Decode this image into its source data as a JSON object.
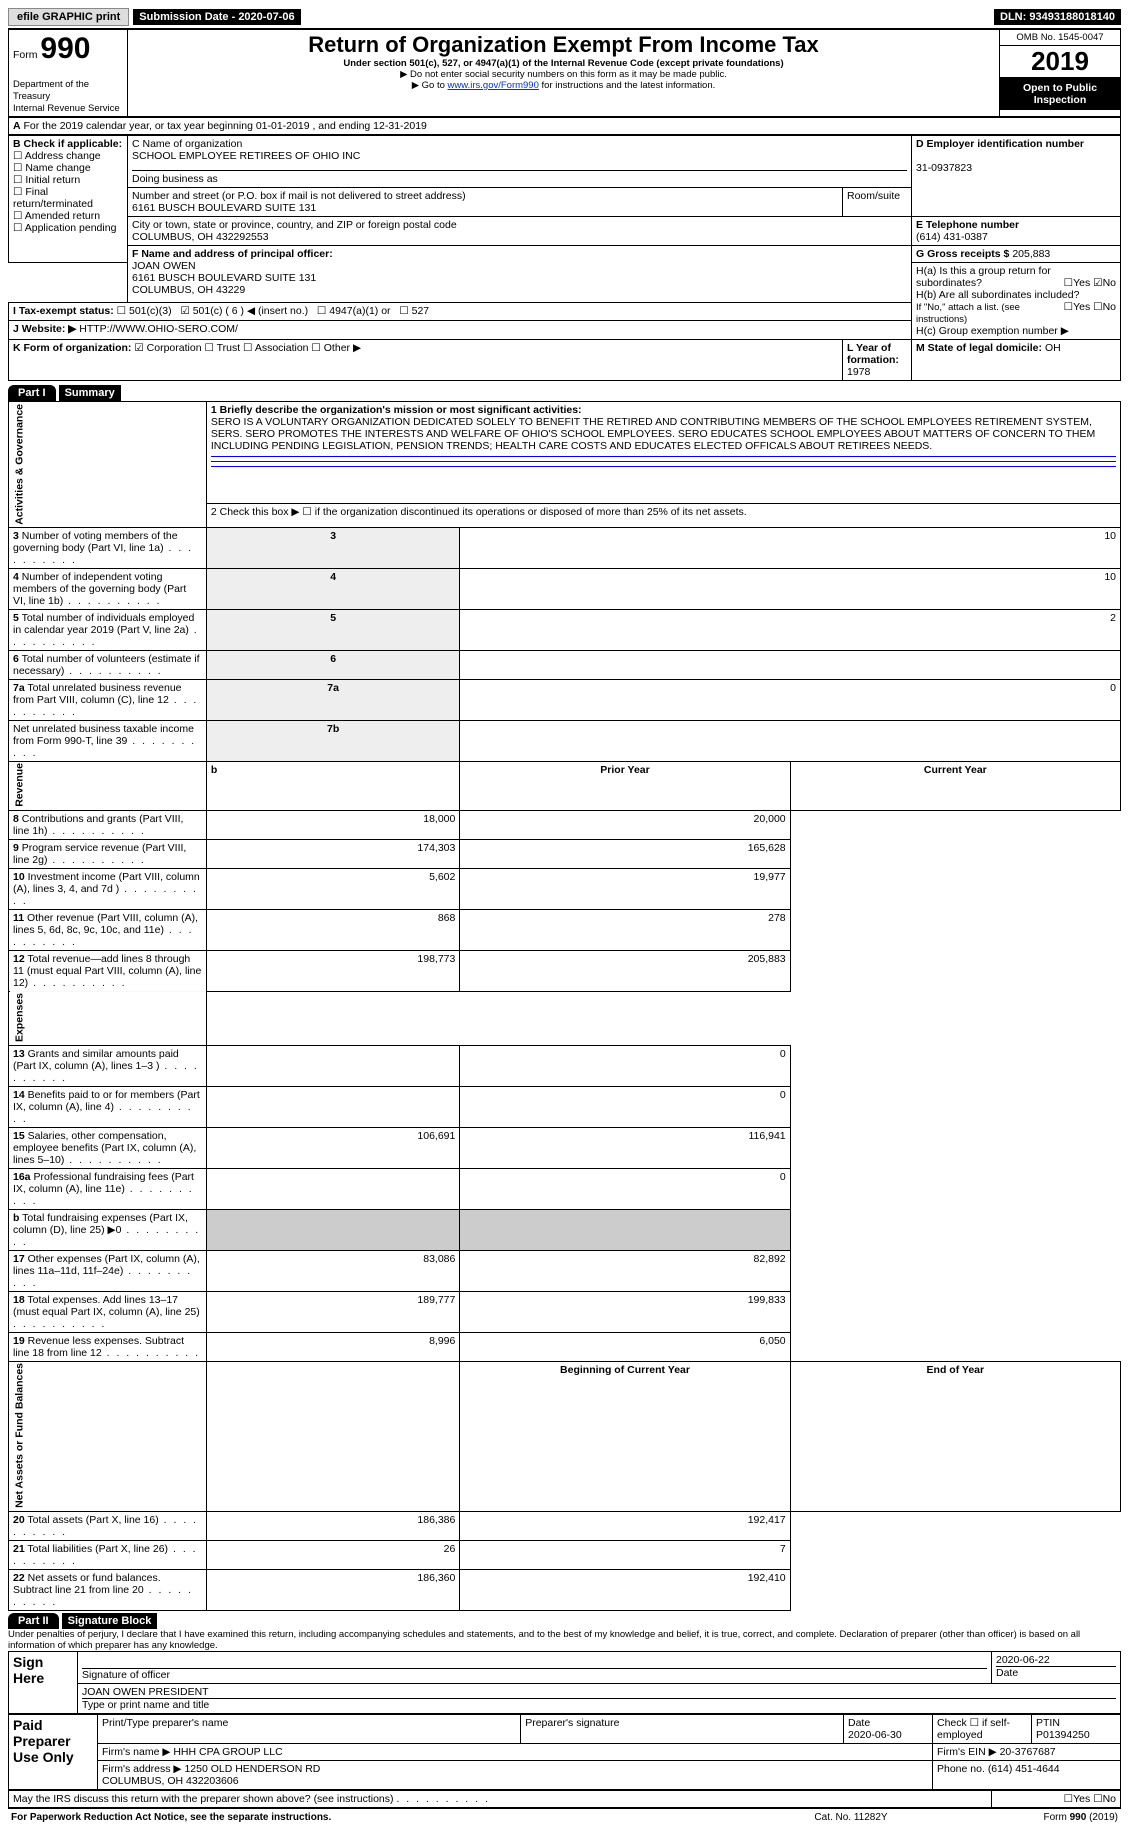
{
  "topbar": {
    "efile": "efile GRAPHIC print",
    "submission_label": "Submission Date - 2020-07-06",
    "dln": "DLN: 93493188018140"
  },
  "header": {
    "form_label": "Form",
    "form_number": "990",
    "title": "Return of Organization Exempt From Income Tax",
    "subtitle": "Under section 501(c), 527, or 4947(a)(1) of the Internal Revenue Code (except private foundations)",
    "note1": "▶ Do not enter social security numbers on this form as it may be made public.",
    "note2_pre": "▶ Go to ",
    "note2_link": "www.irs.gov/Form990",
    "note2_post": " for instructions and the latest information.",
    "dept": "Department of the Treasury\nInternal Revenue Service",
    "omb": "OMB No. 1545-0047",
    "year": "2019",
    "open_public": "Open to Public Inspection"
  },
  "periodA": "For the 2019 calendar year, or tax year beginning 01-01-2019     , and ending 12-31-2019",
  "boxB": {
    "label": "B Check if applicable:",
    "items": [
      "Address change",
      "Name change",
      "Initial return",
      "Final return/terminated",
      "Amended return",
      "Application pending"
    ]
  },
  "boxC": {
    "label": "C Name of organization",
    "name": "SCHOOL EMPLOYEE RETIREES OF OHIO INC",
    "dba_label": "Doing business as",
    "addr_label": "Number and street (or P.O. box if mail is not delivered to street address)",
    "room_label": "Room/suite",
    "addr": "6161 BUSCH BOULEVARD SUITE 131",
    "city_label": "City or town, state or province, country, and ZIP or foreign postal code",
    "city": "COLUMBUS, OH  432292553"
  },
  "boxD": {
    "label": "D Employer identification number",
    "value": "31-0937823"
  },
  "boxE": {
    "label": "E Telephone number",
    "value": "(614) 431-0387"
  },
  "boxG": {
    "label": "G Gross receipts $",
    "value": "205,883"
  },
  "boxF": {
    "label": "F Name and address of principal officer:",
    "name": "JOAN OWEN",
    "addr1": "6161 BUSCH BOULEVARD SUITE 131",
    "addr2": "COLUMBUS, OH  43229"
  },
  "boxH": {
    "a_label": "H(a)  Is this a group return for subordinates?",
    "b_label": "H(b)  Are all subordinates included?",
    "b_note": "If \"No,\" attach a list. (see instructions)",
    "c_label": "H(c)  Group exemption number ▶",
    "yes": "Yes",
    "no": "No"
  },
  "taxI": {
    "label": "I  Tax-exempt status:",
    "opts": [
      "501(c)(3)",
      "501(c) ( 6 ) ◀ (insert no.)",
      "4947(a)(1) or",
      "527"
    ]
  },
  "boxJ": {
    "label": "J Website: ▶",
    "value": "HTTP://WWW.OHIO-SERO.COM/"
  },
  "boxK": {
    "label": "K Form of organization:",
    "opts": [
      "Corporation",
      "Trust",
      "Association",
      "Other ▶"
    ]
  },
  "boxL": {
    "label": "L Year of formation:",
    "value": "1978"
  },
  "boxM": {
    "label": "M State of legal domicile:",
    "value": "OH"
  },
  "part1": {
    "hdr": "Part I",
    "title": "Summary",
    "mission_label": "1  Briefly describe the organization's mission or most significant activities:",
    "mission": "SERO IS A VOLUNTARY ORGANIZATION DEDICATED SOLELY TO BENEFIT THE RETIRED AND CONTRIBUTING MEMBERS OF THE SCHOOL EMPLOYEES RETIREMENT SYSTEM, SERS. SERO PROMOTES THE INTERESTS AND WELFARE OF OHIO'S SCHOOL EMPLOYEES. SERO EDUCATES SCHOOL EMPLOYEES ABOUT MATTERS OF CONCERN TO THEM INCLUDING PENDING LEGISLATION, PENSION TRENDS; HEALTH CARE COSTS AND EDUCATES ELECTED OFFICALS ABOUT RETIREES NEEDS.",
    "line2": "2   Check this box ▶ ☐ if the organization discontinued its operations or disposed of more than 25% of its net assets.",
    "gov_rows": [
      {
        "n": "3",
        "t": "Number of voting members of the governing body (Part VI, line 1a)",
        "col": "3",
        "v": "10"
      },
      {
        "n": "4",
        "t": "Number of independent voting members of the governing body (Part VI, line 1b)",
        "col": "4",
        "v": "10"
      },
      {
        "n": "5",
        "t": "Total number of individuals employed in calendar year 2019 (Part V, line 2a)",
        "col": "5",
        "v": "2"
      },
      {
        "n": "6",
        "t": "Total number of volunteers (estimate if necessary)",
        "col": "6",
        "v": ""
      },
      {
        "n": "7a",
        "t": "Total unrelated business revenue from Part VIII, column (C), line 12",
        "col": "7a",
        "v": "0"
      },
      {
        "n": "",
        "t": "Net unrelated business taxable income from Form 990-T, line 39",
        "col": "7b",
        "v": ""
      }
    ],
    "col_hdrs": {
      "b": "b",
      "prior": "Prior Year",
      "current": "Current Year"
    },
    "revenue": [
      {
        "n": "8",
        "t": "Contributions and grants (Part VIII, line 1h)",
        "p": "18,000",
        "c": "20,000"
      },
      {
        "n": "9",
        "t": "Program service revenue (Part VIII, line 2g)",
        "p": "174,303",
        "c": "165,628"
      },
      {
        "n": "10",
        "t": "Investment income (Part VIII, column (A), lines 3, 4, and 7d )",
        "p": "5,602",
        "c": "19,977"
      },
      {
        "n": "11",
        "t": "Other revenue (Part VIII, column (A), lines 5, 6d, 8c, 9c, 10c, and 11e)",
        "p": "868",
        "c": "278"
      },
      {
        "n": "12",
        "t": "Total revenue—add lines 8 through 11 (must equal Part VIII, column (A), line 12)",
        "p": "198,773",
        "c": "205,883"
      }
    ],
    "expenses": [
      {
        "n": "13",
        "t": "Grants and similar amounts paid (Part IX, column (A), lines 1–3 )",
        "p": "",
        "c": "0"
      },
      {
        "n": "14",
        "t": "Benefits paid to or for members (Part IX, column (A), line 4)",
        "p": "",
        "c": "0"
      },
      {
        "n": "15",
        "t": "Salaries, other compensation, employee benefits (Part IX, column (A), lines 5–10)",
        "p": "106,691",
        "c": "116,941"
      },
      {
        "n": "16a",
        "t": "Professional fundraising fees (Part IX, column (A), line 11e)",
        "p": "",
        "c": "0"
      },
      {
        "n": "b",
        "t": "Total fundraising expenses (Part IX, column (D), line 25) ▶0",
        "p": "gray",
        "c": "gray"
      },
      {
        "n": "17",
        "t": "Other expenses (Part IX, column (A), lines 11a–11d, 11f–24e)",
        "p": "83,086",
        "c": "82,892"
      },
      {
        "n": "18",
        "t": "Total expenses. Add lines 13–17 (must equal Part IX, column (A), line 25)",
        "p": "189,777",
        "c": "199,833"
      },
      {
        "n": "19",
        "t": "Revenue less expenses. Subtract line 18 from line 12",
        "p": "8,996",
        "c": "6,050"
      }
    ],
    "net_hdrs": {
      "begin": "Beginning of Current Year",
      "end": "End of Year"
    },
    "netassets": [
      {
        "n": "20",
        "t": "Total assets (Part X, line 16)",
        "p": "186,386",
        "c": "192,417"
      },
      {
        "n": "21",
        "t": "Total liabilities (Part X, line 26)",
        "p": "26",
        "c": "7"
      },
      {
        "n": "22",
        "t": "Net assets or fund balances. Subtract line 21 from line 20",
        "p": "186,360",
        "c": "192,410"
      }
    ]
  },
  "part2": {
    "hdr": "Part II",
    "title": "Signature Block",
    "penalty": "Under penalties of perjury, I declare that I have examined this return, including accompanying schedules and statements, and to the best of my knowledge and belief, it is true, correct, and complete. Declaration of preparer (other than officer) is based on all information of which preparer has any knowledge.",
    "sign_here": "Sign Here",
    "sig_officer": "Signature of officer",
    "sig_date": "2020-06-22",
    "sig_name": "JOAN OWEN  PRESIDENT",
    "sig_name_label": "Type or print name and title",
    "paid": "Paid Preparer Use Only",
    "prep_name_label": "Print/Type preparer's name",
    "prep_sig_label": "Preparer's signature",
    "prep_date_label": "Date",
    "prep_date": "2020-06-30",
    "check_self": "Check ☐ if self-employed",
    "ptin_label": "PTIN",
    "ptin": "P01394250",
    "firm_name_label": "Firm's name    ▶",
    "firm_name": "HHH CPA GROUP LLC",
    "firm_ein_label": "Firm's EIN ▶",
    "firm_ein": "20-3767687",
    "firm_addr_label": "Firm's address ▶",
    "firm_addr": "1250 OLD HENDERSON RD\nCOLUMBUS, OH  432203606",
    "firm_phone_label": "Phone no.",
    "firm_phone": "(614) 451-4644",
    "discuss": "May the IRS discuss this return with the preparer shown above? (see instructions)",
    "paperwork": "For Paperwork Reduction Act Notice, see the separate instructions.",
    "cat": "Cat. No. 11282Y",
    "form_foot": "Form 990 (2019)"
  },
  "vert": {
    "gov": "Activities & Governance",
    "rev": "Revenue",
    "exp": "Expenses",
    "net": "Net Assets or Fund Balances"
  }
}
